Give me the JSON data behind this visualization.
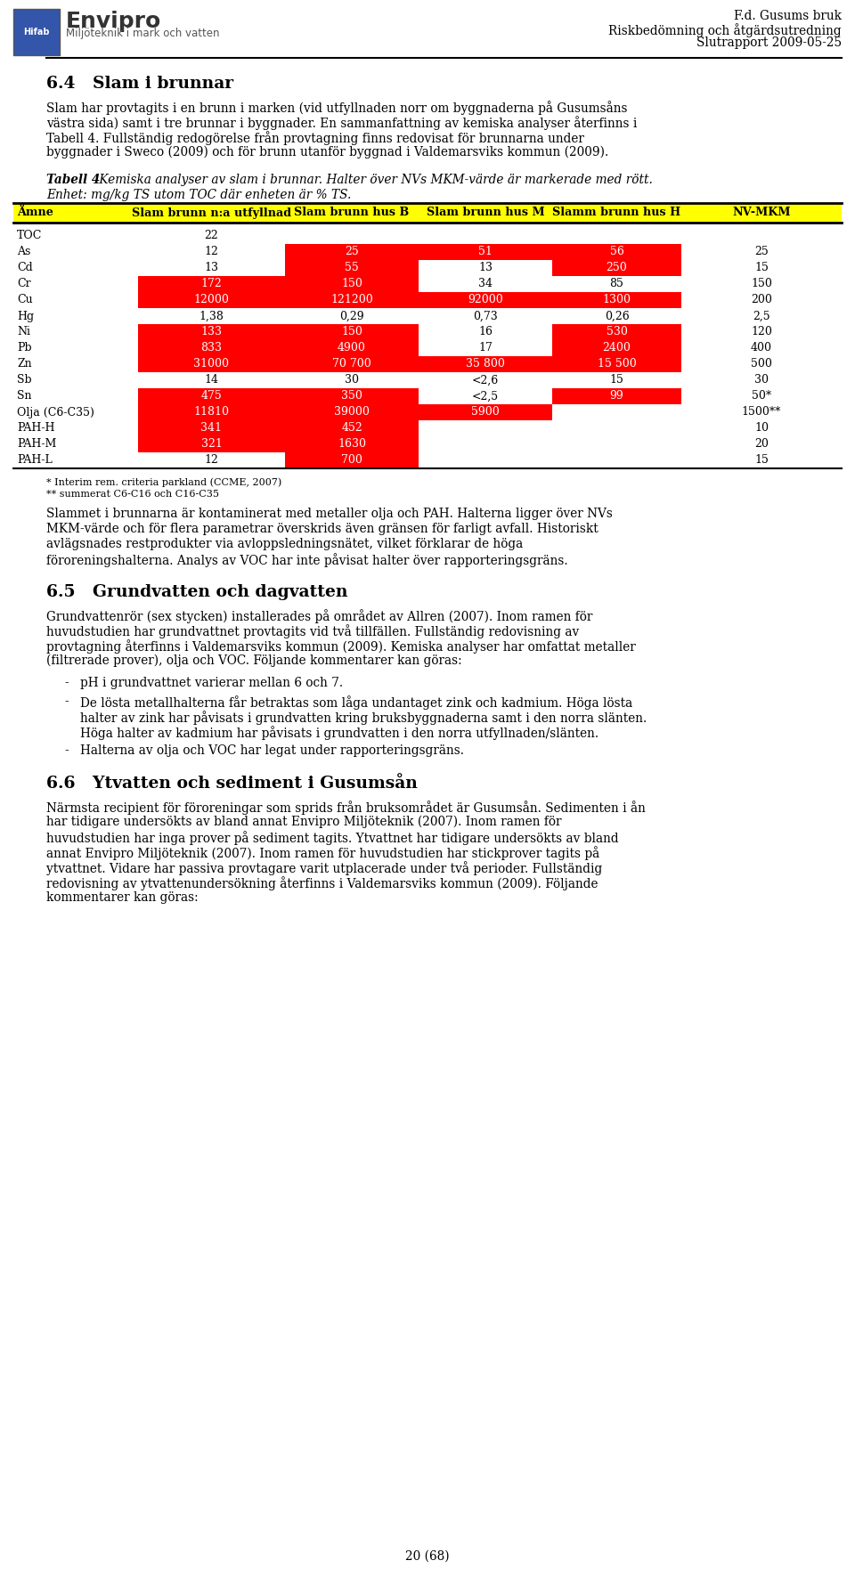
{
  "header_right_line1": "F.d. Gusums bruk",
  "header_right_line2": "Riskbedömning och åtgärdsutredning",
  "header_right_line3": "Slutrapport 2009-05-25",
  "section_64_title": "6.4   Slam i brunnar",
  "table_caption_bold": "Tabell 4",
  "table_caption_rest": " Kemiska analyser av slam i brunnar. Halter över NVs MKM-värde är markerade med rött.",
  "table_caption_line2": "Enhet: mg/kg TS utom TOC där enheten är % TS.",
  "table_header": [
    "Ämne",
    "Slam brunn n:a utfyllnad",
    "Slam brunn hus B",
    "Slam brunn hus M",
    "Slamm brunn hus H",
    "NV-MKM"
  ],
  "table_rows": [
    {
      "name": "TOC",
      "utfyllnad": "22",
      "husB": "",
      "husM": "",
      "husH": "",
      "nv": "",
      "red_utfyllnad": false,
      "red_husB": false,
      "red_husM": false,
      "red_husH": false
    },
    {
      "name": "As",
      "utfyllnad": "12",
      "husB": "25",
      "husM": "51",
      "husH": "56",
      "nv": "25",
      "red_utfyllnad": false,
      "red_husB": true,
      "red_husM": true,
      "red_husH": true
    },
    {
      "name": "Cd",
      "utfyllnad": "13",
      "husB": "55",
      "husM": "13",
      "husH": "250",
      "nv": "15",
      "red_utfyllnad": false,
      "red_husB": true,
      "red_husM": false,
      "red_husH": true
    },
    {
      "name": "Cr",
      "utfyllnad": "172",
      "husB": "150",
      "husM": "34",
      "husH": "85",
      "nv": "150",
      "red_utfyllnad": true,
      "red_husB": true,
      "red_husM": false,
      "red_husH": false
    },
    {
      "name": "Cu",
      "utfyllnad": "12000",
      "husB": "121200",
      "husM": "92000",
      "husH": "1300",
      "nv": "200",
      "red_utfyllnad": true,
      "red_husB": true,
      "red_husM": true,
      "red_husH": true
    },
    {
      "name": "Hg",
      "utfyllnad": "1,38",
      "husB": "0,29",
      "husM": "0,73",
      "husH": "0,26",
      "nv": "2,5",
      "red_utfyllnad": false,
      "red_husB": false,
      "red_husM": false,
      "red_husH": false
    },
    {
      "name": "Ni",
      "utfyllnad": "133",
      "husB": "150",
      "husM": "16",
      "husH": "530",
      "nv": "120",
      "red_utfyllnad": true,
      "red_husB": true,
      "red_husM": false,
      "red_husH": true
    },
    {
      "name": "Pb",
      "utfyllnad": "833",
      "husB": "4900",
      "husM": "17",
      "husH": "2400",
      "nv": "400",
      "red_utfyllnad": true,
      "red_husB": true,
      "red_husM": false,
      "red_husH": true
    },
    {
      "name": "Zn",
      "utfyllnad": "31000",
      "husB": "70 700",
      "husM": "35 800",
      "husH": "15 500",
      "nv": "500",
      "red_utfyllnad": true,
      "red_husB": true,
      "red_husM": true,
      "red_husH": true
    },
    {
      "name": "Sb",
      "utfyllnad": "14",
      "husB": "30",
      "husM": "<2,6",
      "husH": "15",
      "nv": "30",
      "red_utfyllnad": false,
      "red_husB": false,
      "red_husM": false,
      "red_husH": false
    },
    {
      "name": "Sn",
      "utfyllnad": "475",
      "husB": "350",
      "husM": "<2,5",
      "husH": "99",
      "nv": "50*",
      "red_utfyllnad": true,
      "red_husB": true,
      "red_husM": false,
      "red_husH": true
    },
    {
      "name": "Olja (C6-C35)",
      "utfyllnad": "11810",
      "husB": "39000",
      "husM": "5900",
      "husH": "",
      "nv": "1500**",
      "red_utfyllnad": true,
      "red_husB": true,
      "red_husM": true,
      "red_husH": false
    },
    {
      "name": "PAH-H",
      "utfyllnad": "341",
      "husB": "452",
      "husM": "",
      "husH": "",
      "nv": "10",
      "red_utfyllnad": true,
      "red_husB": true,
      "red_husM": false,
      "red_husH": false
    },
    {
      "name": "PAH-M",
      "utfyllnad": "321",
      "husB": "1630",
      "husM": "",
      "husH": "",
      "nv": "20",
      "red_utfyllnad": true,
      "red_husB": true,
      "red_husM": false,
      "red_husH": false
    },
    {
      "name": "PAH-L",
      "utfyllnad": "12",
      "husB": "700",
      "husM": "",
      "husH": "",
      "nv": "15",
      "red_utfyllnad": false,
      "red_husB": true,
      "red_husM": false,
      "red_husH": false
    }
  ],
  "footnote1": "* Interim rem. criteria parkland (CCME, 2007)",
  "footnote2": "** summerat C6-C16 och C16-C35",
  "para64a_lines": [
    "Slam har provtagits i en brunn i marken (vid utfyllnaden norr om byggnaderna på Gusumsåns",
    "västra sida) samt i tre brunnar i byggnader. En sammanfattning av kemiska analyser återfinns i",
    "Tabell 4. Fullständig redogörelse från provtagning finns redovisat för brunnarna under",
    "byggnader i Sweco (2009) och för brunn utanför byggnad i Valdemarsviks kommun (2009)."
  ],
  "para64b_lines": [
    "Slammet i brunnarna är kontaminerat med metaller olja och PAH. Halterna ligger över NVs",
    "MKM-värde och för flera parametrar överskrids även gränsen för farligt avfall. Historiskt",
    "avlägsnades restprodukter via avloppsledningsnätet, vilket förklarar de höga",
    "föroreningshalterna. Analys av VOC har inte påvisat halter över rapporteringsgräns."
  ],
  "section_65_title": "6.5   Grundvatten och dagvatten",
  "para65_lines": [
    "Grundvattenrör (sex stycken) installerades på området av Allren (2007). Inom ramen för",
    "huvudstudien har grundvattnet provtagits vid två tillfällen. Fullständig redovisning av",
    "provtagning återfinns i Valdemarsviks kommun (2009). Kemiska analyser har omfattat metaller",
    "(filtrerade prover), olja och VOC. Följande kommentarer kan göras:"
  ],
  "bullet1": "pH i grundvattnet varierar mellan 6 och 7.",
  "bullet2_lines": [
    "De lösta metallhalterna får betraktas som låga undantaget zink och kadmium. Höga lösta",
    "halter av zink har påvisats i grundvatten kring bruksbyggnaderna samt i den norra slänten.",
    "Höga halter av kadmium har påvisats i grundvatten i den norra utfyllnaden/slänten."
  ],
  "bullet3": "Halterna av olja och VOC har legat under rapporteringsgräns.",
  "section_66_title": "6.6   Ytvatten och sediment i Gusumsån",
  "para66_lines": [
    "Närmsta recipient för föroreningar som sprids från bruksområdet är Gusumsån. Sedimenten i ån",
    "har tidigare undersökts av bland annat Envipro Miljöteknik (2007). Inom ramen för",
    "huvudstudien har inga prover på sediment tagits. Ytvattnet har tidigare undersökts av bland",
    "annat Envipro Miljöteknik (2007). Inom ramen för huvudstudien har stickprover tagits på",
    "ytvattnet. Vidare har passiva provtagare varit utplacerade under två perioder. Fullständig",
    "redovisning av ytvattenundersökning återfinns i Valdemarsviks kommun (2009). Följande",
    "kommentarer kan göras:"
  ],
  "page_number": "20 (68)",
  "red_color": "#FF0000",
  "yellow_color": "#FFFF00",
  "bg_color": "#FFFFFF"
}
